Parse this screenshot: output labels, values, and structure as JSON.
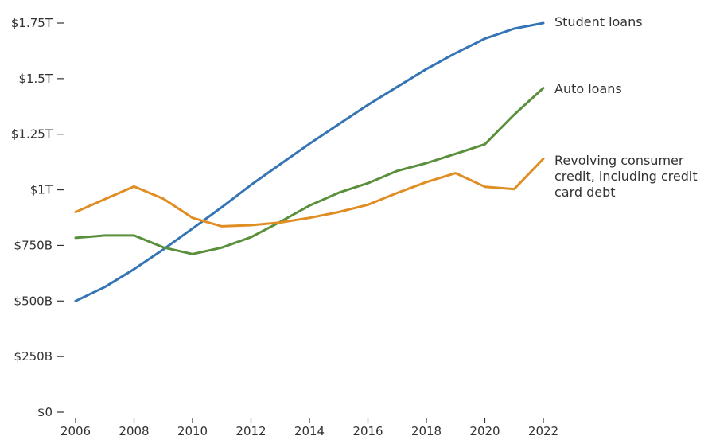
{
  "chart_data": {
    "type": "line",
    "x": [
      2006,
      2007,
      2008,
      2009,
      2010,
      2011,
      2012,
      2013,
      2014,
      2015,
      2016,
      2017,
      2018,
      2019,
      2020,
      2021,
      2022
    ],
    "xticks": [
      2006,
      2008,
      2010,
      2012,
      2014,
      2016,
      2018,
      2020,
      2022
    ],
    "xtick_labels": [
      "2006",
      "2008",
      "2010",
      "2012",
      "2014",
      "2016",
      "2018",
      "2020",
      "2022"
    ],
    "yticks": [
      0,
      250,
      500,
      750,
      1000,
      1250,
      1500,
      1750
    ],
    "ytick_labels": [
      "$0",
      "$250B",
      "$500B",
      "$750B",
      "$1T",
      "$1.25T",
      "$1.5T",
      "$1.75T"
    ],
    "ylim": [
      0,
      1750
    ],
    "xlim": [
      2006,
      2022
    ],
    "grid": false,
    "series": [
      {
        "name": "Student loans",
        "label_lines": [
          "Student loans"
        ],
        "color": "#3575b5",
        "values": [
          500,
          563,
          643,
          732,
          826,
          922,
          1022,
          1115,
          1207,
          1295,
          1382,
          1463,
          1543,
          1615,
          1680,
          1725,
          1750
        ]
      },
      {
        "name": "Auto loans",
        "label_lines": [
          "Auto loans"
        ],
        "color": "#5a8f3c",
        "values": [
          784,
          795,
          795,
          741,
          711,
          740,
          787,
          856,
          929,
          987,
          1030,
          1085,
          1120,
          1162,
          1205,
          1338,
          1458
        ]
      },
      {
        "name": "Revolving consumer credit, including credit card debt",
        "label_lines": [
          "Revolving consumer",
          "credit, including credit",
          "card debt"
        ],
        "color": "#e08d23",
        "values": [
          900,
          958,
          1015,
          960,
          874,
          836,
          841,
          853,
          874,
          900,
          933,
          986,
          1035,
          1075,
          1014,
          1003,
          1140
        ]
      }
    ]
  }
}
